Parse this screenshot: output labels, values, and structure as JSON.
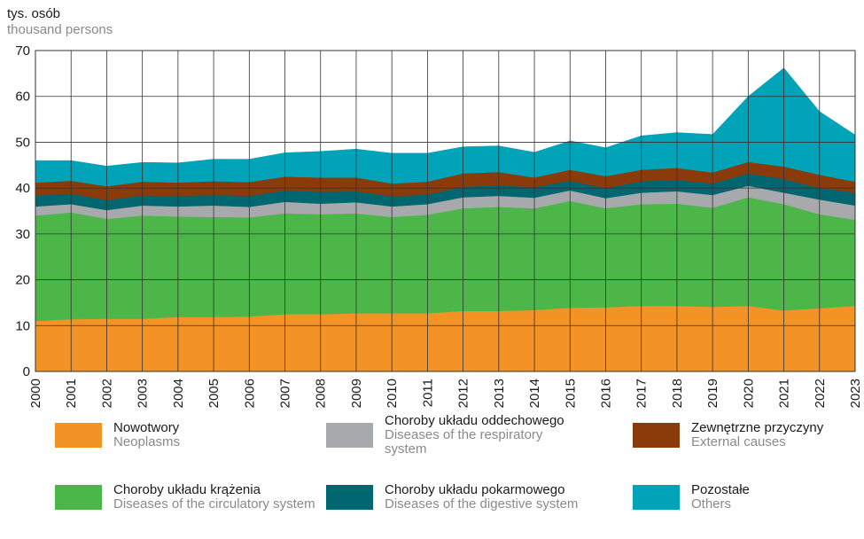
{
  "chart_data": {
    "type": "stacked_area",
    "y_label": "tys. osób",
    "y_label_en": "thousand persons",
    "categories": [
      "2000",
      "2001",
      "2002",
      "2003",
      "2004",
      "2005",
      "2006",
      "2007",
      "2008",
      "2009",
      "2010",
      "2011",
      "2012",
      "2013",
      "2014",
      "2015",
      "2016",
      "2017",
      "2018",
      "2019",
      "2020",
      "2021",
      "2022",
      "2023"
    ],
    "ylim": [
      0,
      70
    ],
    "yticks": [
      0,
      10,
      20,
      30,
      40,
      50,
      60,
      70
    ],
    "grid": true,
    "series": [
      {
        "name": "Nowotwory",
        "name_en": "Neoplasms",
        "color": "#f39325",
        "values": [
          11.0,
          11.4,
          11.5,
          11.5,
          11.9,
          11.9,
          12.0,
          12.5,
          12.5,
          12.7,
          12.7,
          12.7,
          13.2,
          13.2,
          13.4,
          13.9,
          14.0,
          14.3,
          14.3,
          14.1,
          14.3,
          13.3,
          13.8,
          14.3
        ]
      },
      {
        "name": "Choroby układu krążenia",
        "name_en": "Diseases of the circulatory system",
        "color": "#4cb748",
        "values": [
          23.0,
          23.3,
          21.8,
          22.5,
          21.9,
          21.8,
          21.6,
          22.0,
          21.8,
          21.8,
          21.0,
          21.5,
          22.4,
          22.7,
          22.2,
          23.3,
          21.6,
          22.2,
          22.3,
          21.6,
          23.7,
          23.2,
          20.5,
          18.8
        ]
      },
      {
        "name": "Choroby układu oddechowego",
        "name_en": "Diseases of the respiratory system",
        "color": "#a8a9ad",
        "values": [
          2.0,
          1.8,
          1.9,
          2.2,
          2.2,
          2.5,
          2.3,
          2.5,
          2.3,
          2.4,
          2.3,
          2.3,
          2.4,
          2.4,
          2.3,
          2.3,
          2.2,
          2.5,
          2.7,
          2.8,
          2.5,
          2.5,
          3.2,
          3.1
        ]
      },
      {
        "name": "Choroby układu pokarmowego",
        "name_en": "Diseases of the digestive system",
        "color": "#006670",
        "values": [
          2.4,
          2.3,
          2.2,
          2.2,
          2.3,
          2.3,
          2.4,
          2.5,
          2.6,
          2.4,
          2.2,
          2.1,
          2.3,
          2.3,
          2.3,
          2.1,
          2.2,
          2.5,
          2.5,
          2.5,
          2.7,
          3.0,
          2.5,
          2.8
        ]
      },
      {
        "name": "Zewnętrzne przyczyny",
        "name_en": "External causes",
        "color": "#8b3a0a",
        "values": [
          2.8,
          2.8,
          3.0,
          3.0,
          2.9,
          3.0,
          3.0,
          3.0,
          3.1,
          3.0,
          2.8,
          2.8,
          2.9,
          2.9,
          2.1,
          2.4,
          2.6,
          2.5,
          2.6,
          2.4,
          2.5,
          2.7,
          2.9,
          2.4
        ]
      },
      {
        "name": "Pozostałe",
        "name_en": "Others",
        "color": "#00a3b8",
        "values": [
          4.8,
          4.4,
          4.4,
          4.2,
          4.3,
          4.8,
          5.0,
          5.2,
          5.7,
          6.2,
          6.6,
          6.2,
          5.8,
          5.7,
          5.5,
          6.3,
          6.2,
          7.4,
          7.7,
          8.3,
          14.3,
          21.5,
          13.8,
          10.2
        ]
      }
    ]
  }
}
